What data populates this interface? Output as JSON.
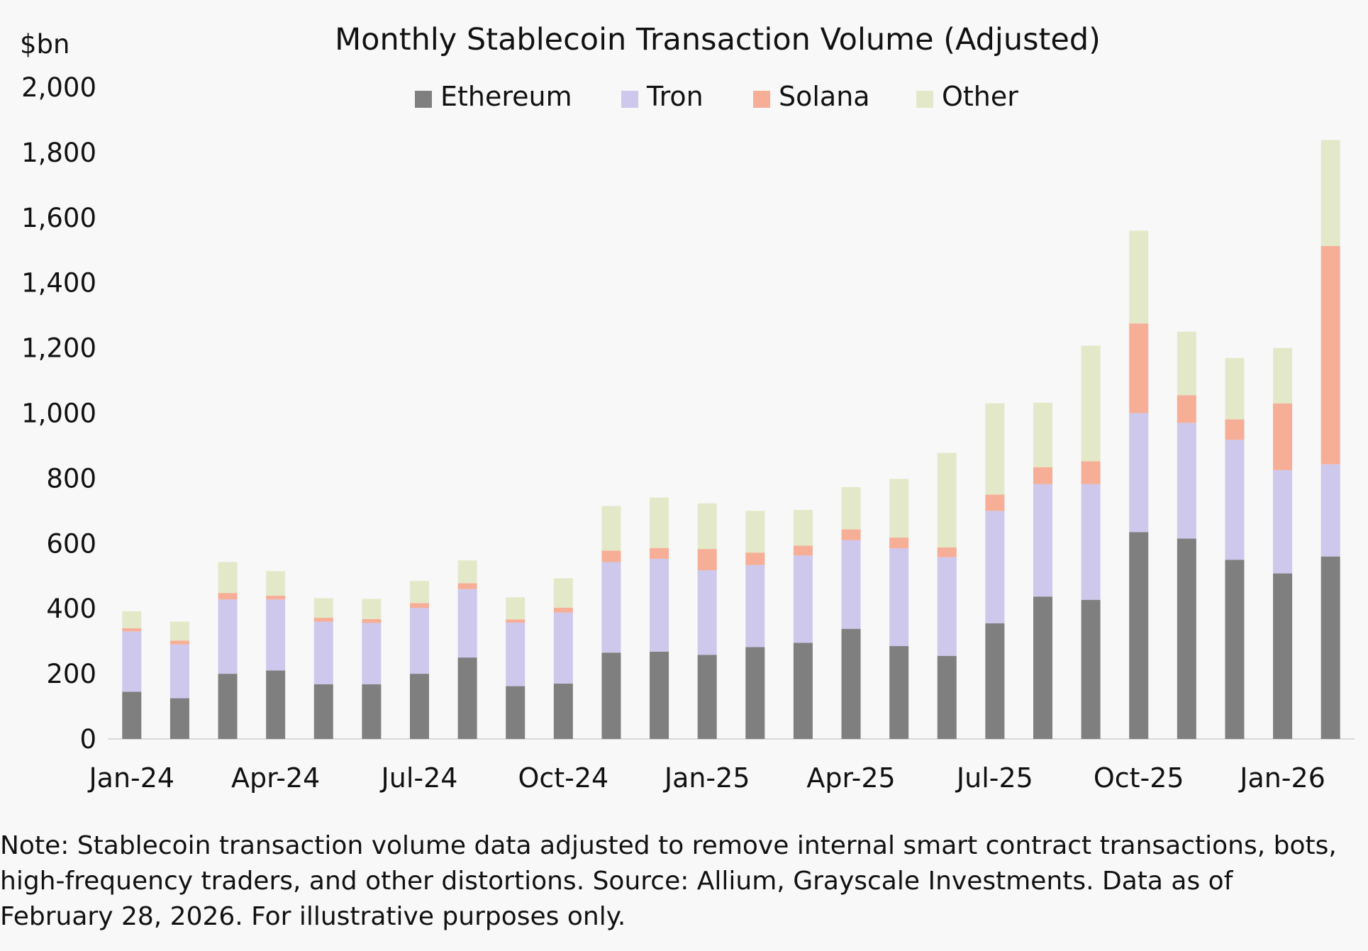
{
  "chart_data": {
    "type": "bar",
    "stacked": true,
    "title": "Monthly Stablecoin Transaction Volume (Adjusted)",
    "ylabel": "$bn",
    "ylim": [
      0,
      2000
    ],
    "yticks": [
      0,
      200,
      400,
      600,
      800,
      1000,
      1200,
      1400,
      1600,
      1800,
      2000
    ],
    "ytick_labels": [
      "0",
      "200",
      "400",
      "600",
      "800",
      "1,000",
      "1,200",
      "1,400",
      "1,600",
      "1,800",
      "2,000"
    ],
    "grid": false,
    "legend_position": "top",
    "categories": [
      "Jan-24",
      "Feb-24",
      "Mar-24",
      "Apr-24",
      "May-24",
      "Jun-24",
      "Jul-24",
      "Aug-24",
      "Sep-24",
      "Oct-24",
      "Nov-24",
      "Dec-24",
      "Jan-25",
      "Feb-25",
      "Mar-25",
      "Apr-25",
      "May-25",
      "Jun-25",
      "Jul-25",
      "Aug-25",
      "Sep-25",
      "Oct-25",
      "Nov-25",
      "Dec-25",
      "Jan-26",
      "Feb-26"
    ],
    "xtick_labels": [
      {
        "index": 0,
        "label": "Jan-24"
      },
      {
        "index": 3,
        "label": "Apr-24"
      },
      {
        "index": 6,
        "label": "Jul-24"
      },
      {
        "index": 9,
        "label": "Oct-24"
      },
      {
        "index": 12,
        "label": "Jan-25"
      },
      {
        "index": 15,
        "label": "Apr-25"
      },
      {
        "index": 18,
        "label": "Jul-25"
      },
      {
        "index": 21,
        "label": "Oct-25"
      },
      {
        "index": 24,
        "label": "Jan-26"
      }
    ],
    "series": [
      {
        "name": "Ethereum",
        "color": "#7f7f7f",
        "values": [
          145,
          125,
          200,
          210,
          168,
          168,
          200,
          250,
          162,
          170,
          265,
          268,
          258,
          282,
          295,
          338,
          285,
          255,
          355,
          437,
          427,
          635,
          615,
          550,
          508,
          560
        ]
      },
      {
        "name": "Tron",
        "color": "#cdc8ec",
        "values": [
          185,
          165,
          228,
          218,
          192,
          188,
          202,
          210,
          195,
          218,
          278,
          285,
          260,
          252,
          268,
          272,
          300,
          303,
          345,
          345,
          355,
          365,
          355,
          368,
          317,
          283
        ]
      },
      {
        "name": "Solana",
        "color": "#f6ae96",
        "values": [
          10,
          12,
          20,
          12,
          12,
          12,
          15,
          18,
          10,
          15,
          35,
          33,
          65,
          38,
          30,
          33,
          33,
          30,
          50,
          52,
          70,
          275,
          85,
          63,
          205,
          670
        ]
      },
      {
        "name": "Other",
        "color": "#e3e9c8",
        "values": [
          52,
          58,
          95,
          75,
          60,
          62,
          68,
          70,
          68,
          90,
          137,
          155,
          140,
          128,
          110,
          130,
          180,
          290,
          280,
          198,
          355,
          285,
          195,
          188,
          170,
          325
        ]
      }
    ]
  },
  "note": "Note: Stablecoin transaction volume data adjusted to remove internal smart contract transactions, bots, high-frequency traders, and other distortions. Source: Allium, Grayscale Investments. Data as of February 28, 2026. For illustrative purposes only."
}
